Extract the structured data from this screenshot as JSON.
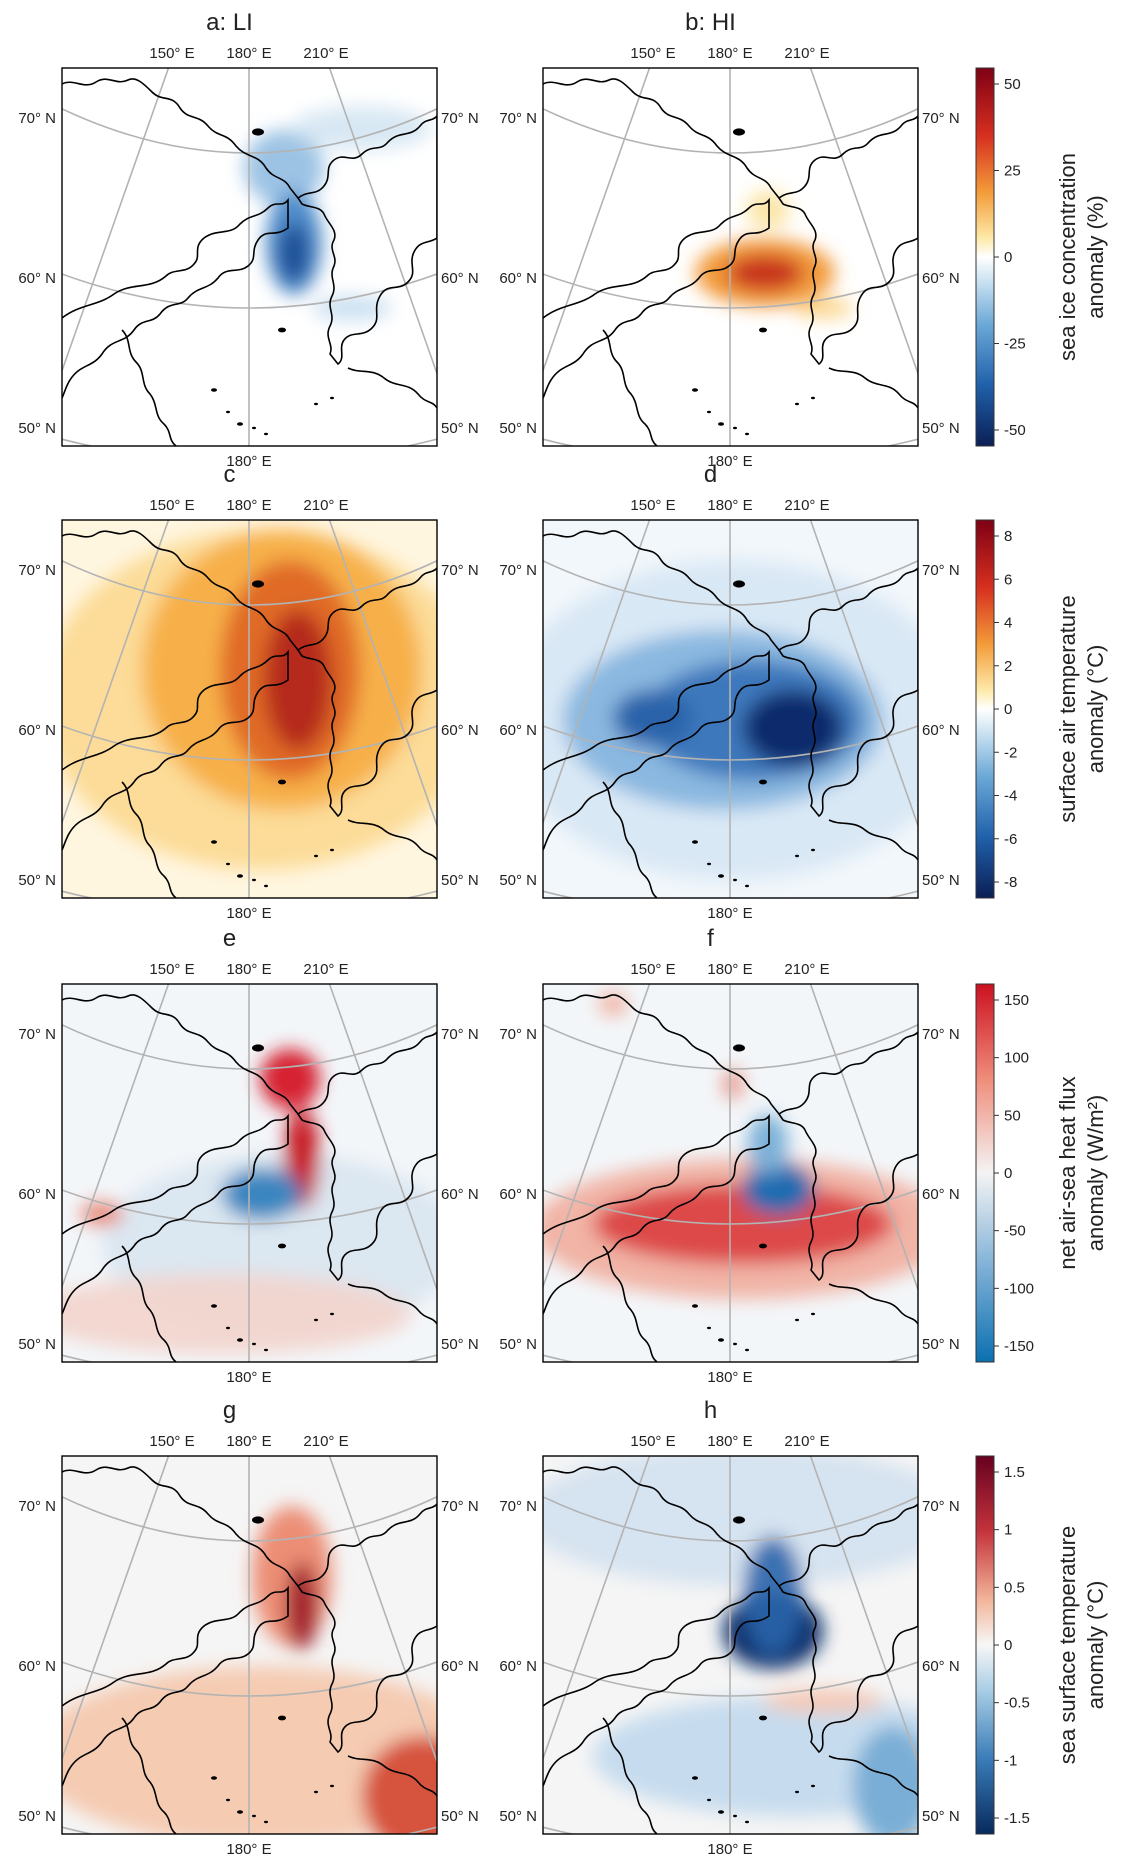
{
  "figure": {
    "panels": [
      {
        "id": "a",
        "title": "a: LI",
        "row": 0,
        "col": 0,
        "field": "sic",
        "sign": -1
      },
      {
        "id": "b",
        "title": "b: HI",
        "row": 0,
        "col": 1,
        "field": "sic",
        "sign": 1
      },
      {
        "id": "c",
        "title": "c",
        "row": 1,
        "col": 0,
        "field": "sat",
        "sign": 1
      },
      {
        "id": "d",
        "title": "d",
        "row": 1,
        "col": 1,
        "field": "sat",
        "sign": -1
      },
      {
        "id": "e",
        "title": "e",
        "row": 2,
        "col": 0,
        "field": "flux",
        "sign": 1
      },
      {
        "id": "f",
        "title": "f",
        "row": 2,
        "col": 1,
        "field": "flux",
        "sign": -1
      },
      {
        "id": "g",
        "title": "g",
        "row": 3,
        "col": 0,
        "field": "sst",
        "sign": 1
      },
      {
        "id": "h",
        "title": "h",
        "row": 3,
        "col": 1,
        "field": "sst",
        "sign": -1
      }
    ],
    "lon_labels_top": [
      "150° E",
      "180° E",
      "210° E"
    ],
    "lon_label_bottom": "180° E",
    "lat_labels": [
      "70° N",
      "60° N",
      "50° N"
    ],
    "colorbars": [
      {
        "row": 0,
        "title_lines": [
          "sea ice concentration",
          "anomaly (%)"
        ],
        "ticks": [
          "50",
          "25",
          "0",
          "-25",
          "-50"
        ],
        "min": -50,
        "max": 50
      },
      {
        "row": 1,
        "title_lines": [
          "surface air temperature",
          "anomaly (°C)"
        ],
        "ticks": [
          "8",
          "6",
          "4",
          "2",
          "0",
          "-2",
          "-4",
          "-6",
          "-8"
        ],
        "min": -8,
        "max": 8
      },
      {
        "row": 2,
        "title_lines": [
          "net air-sea heat flux",
          "anomaly (W/m²)"
        ],
        "ticks": [
          "150",
          "100",
          "50",
          "0",
          "-50",
          "-100",
          "-150"
        ],
        "min": -150,
        "max": 150
      },
      {
        "row": 3,
        "title_lines": [
          "sea surface temperature",
          "anomaly (°C)"
        ],
        "ticks": [
          "1.5",
          "1",
          "0.5",
          "0",
          "-0.5",
          "-1",
          "-1.5"
        ],
        "min": -1.5,
        "max": 1.5
      }
    ],
    "colors": {
      "warm_dark": "#7f0015",
      "warm_mid": "#e8541e",
      "warm_light": "#fbd98a",
      "cool_dark": "#0b1f55",
      "cool_mid": "#2c6fb5",
      "cool_light": "#cfe3f3",
      "coast": "#000000",
      "grid": "#b3b3b3"
    }
  }
}
